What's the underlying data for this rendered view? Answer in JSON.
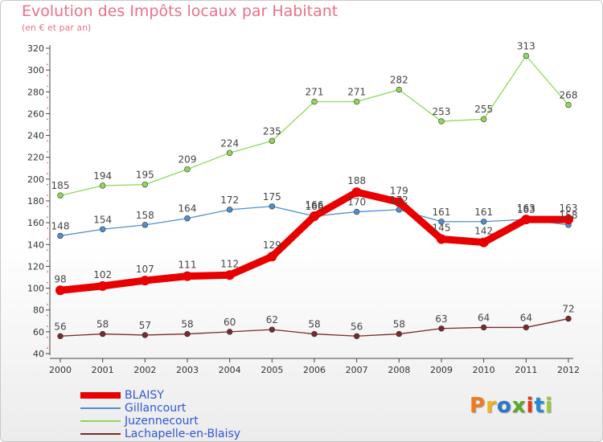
{
  "title": "Evolution des Impôts locaux par Habitant",
  "subtitle": "(en € et par an)",
  "brand": {
    "name": "Proxiti",
    "colors": [
      "#f07b1c",
      "#f5b319",
      "#2a76c9",
      "#5da82a",
      "#e2381f",
      "#1f8bd6",
      "#9cc93b"
    ]
  },
  "chart_data": {
    "type": "line",
    "title": "Evolution des Impôts locaux par Habitant",
    "subtitle": "(en € et par an)",
    "xlabel": "",
    "ylabel": "",
    "x": [
      "2000",
      "2001",
      "2002",
      "2003",
      "2004",
      "2005",
      "2006",
      "2007",
      "2008",
      "2009",
      "2010",
      "2011",
      "2012"
    ],
    "ylim": [
      40,
      320
    ],
    "yticks": [
      40,
      60,
      80,
      100,
      120,
      140,
      160,
      180,
      200,
      220,
      240,
      260,
      280,
      300,
      320
    ],
    "grid": false,
    "legend_position": "bottom-left",
    "series": [
      {
        "name": "BLAISY",
        "color": "#e80000",
        "style": "thick",
        "values": [
          98,
          102,
          107,
          111,
          112,
          129,
          166,
          188,
          179,
          145,
          142,
          163,
          163
        ]
      },
      {
        "name": "Gillancourt",
        "color": "#4f8fce",
        "style": "thin",
        "values": [
          148,
          154,
          158,
          164,
          172,
          175,
          166,
          170,
          172,
          161,
          161,
          163,
          158
        ]
      },
      {
        "name": "Juzennecourt",
        "color": "#8fd85a",
        "style": "thin",
        "values": [
          185,
          194,
          195,
          209,
          224,
          235,
          271,
          271,
          282,
          253,
          255,
          313,
          268
        ]
      },
      {
        "name": "Lachapelle-en-Blaisy",
        "color": "#7a2a2a",
        "style": "thin",
        "values": [
          56,
          58,
          57,
          58,
          60,
          62,
          58,
          56,
          58,
          63,
          64,
          64,
          72
        ]
      }
    ]
  }
}
